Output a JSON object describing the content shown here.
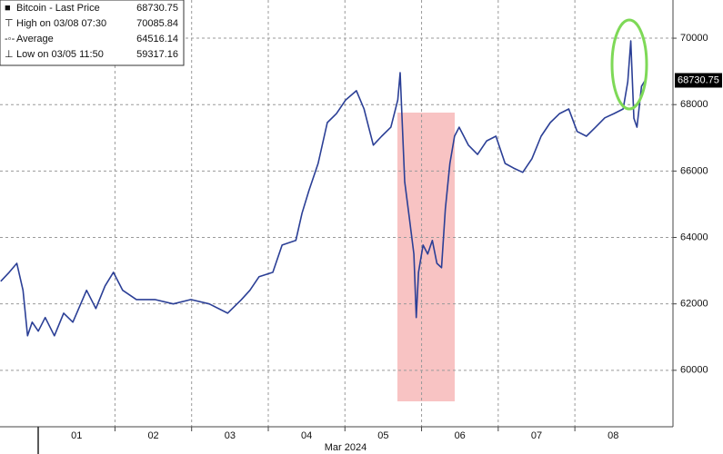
{
  "chart_data": {
    "type": "line",
    "x_label": "Mar 2024",
    "xlim": [
      0.5,
      9.28
    ],
    "ylim": [
      58300,
      71150
    ],
    "yticks": [
      60000,
      62000,
      64000,
      66000,
      68000,
      70000
    ],
    "xticks": [
      {
        "value": 1.5,
        "label": "01"
      },
      {
        "value": 2.5,
        "label": "02"
      },
      {
        "value": 3.5,
        "label": "03"
      },
      {
        "value": 4.5,
        "label": "04"
      },
      {
        "value": 5.5,
        "label": "05"
      },
      {
        "value": 6.5,
        "label": "06"
      },
      {
        "value": 7.5,
        "label": "07"
      },
      {
        "value": 8.5,
        "label": "08"
      }
    ],
    "x_gridlines": [
      2,
      3,
      4,
      5,
      6,
      7,
      8
    ],
    "grid": true,
    "legend": [
      {
        "label": "Bitcoin - Last Price",
        "value": 68730.75
      },
      {
        "label": "High on 03/08 07:30",
        "value": 70085.84
      },
      {
        "label": "Average",
        "value": 64516.14
      },
      {
        "label": "Low on 03/05 11:50",
        "value": 59317.16
      }
    ],
    "last_price": 68730.75,
    "series": [
      {
        "name": "Bitcoin",
        "color": "#2b3f96",
        "x": [
          0.51,
          0.62,
          0.72,
          0.8,
          0.86,
          0.92,
          1.0,
          1.09,
          1.21,
          1.33,
          1.45,
          1.63,
          1.75,
          1.87,
          1.98,
          2.1,
          2.28,
          2.52,
          2.76,
          2.99,
          3.23,
          3.47,
          3.65,
          3.76,
          3.88,
          4.06,
          4.18,
          4.36,
          4.44,
          4.53,
          4.65,
          4.77,
          4.89,
          5.01,
          5.15,
          5.25,
          5.31,
          5.37,
          5.48,
          5.6,
          5.69,
          5.72,
          5.78,
          5.84,
          5.9,
          5.93,
          5.96,
          6.02,
          6.08,
          6.14,
          6.2,
          6.26,
          6.31,
          6.37,
          6.43,
          6.49,
          6.61,
          6.73,
          6.85,
          6.97,
          7.09,
          7.2,
          7.32,
          7.44,
          7.56,
          7.68,
          7.8,
          7.92,
          8.03,
          8.15,
          8.27,
          8.39,
          8.51,
          8.63,
          8.69,
          8.73,
          8.77,
          8.81,
          8.87,
          8.92
        ],
        "values": [
          62680,
          62950,
          63220,
          62410,
          61040,
          61450,
          61180,
          61590,
          61040,
          61720,
          61450,
          62410,
          61860,
          62540,
          62950,
          62410,
          62130,
          62130,
          62000,
          62130,
          62000,
          61720,
          62130,
          62410,
          62820,
          62950,
          63770,
          63910,
          64730,
          65410,
          66230,
          67460,
          67730,
          68140,
          68420,
          67870,
          67320,
          66780,
          67050,
          67320,
          68140,
          68960,
          65680,
          64590,
          63500,
          61590,
          62950,
          63770,
          63500,
          63910,
          63220,
          63090,
          64860,
          66230,
          67050,
          67320,
          66780,
          66500,
          66910,
          67050,
          66230,
          66090,
          65960,
          66370,
          67050,
          67460,
          67730,
          67870,
          67190,
          67050,
          67320,
          67600,
          67730,
          67870,
          68690,
          69920,
          67590,
          67320,
          68550,
          68740
        ]
      }
    ]
  }
}
